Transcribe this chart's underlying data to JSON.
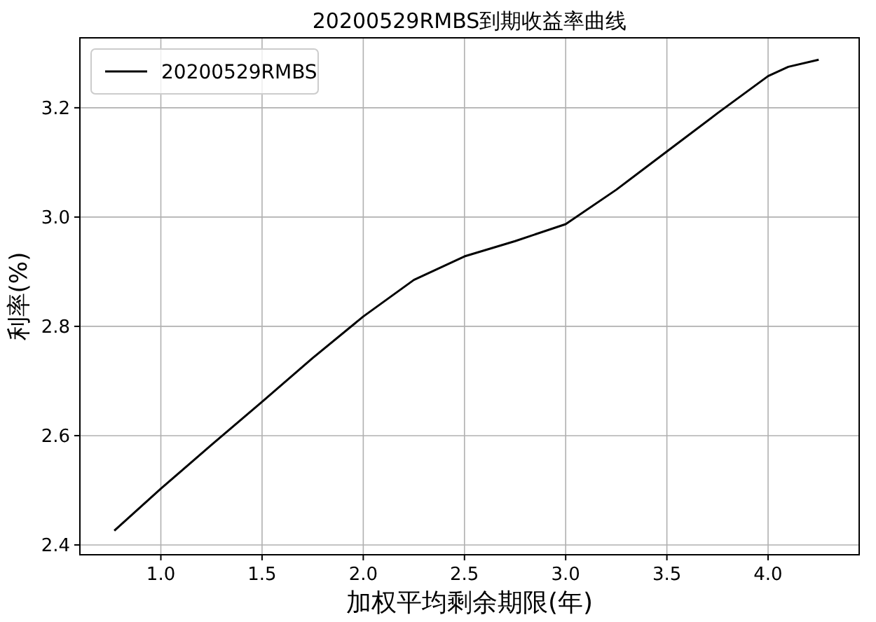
{
  "chart_data": {
    "type": "line",
    "title": "20200529RMBS到期收益率曲线",
    "xlabel": "加权平均剩余期限(年)",
    "ylabel": "利率(%)",
    "x": [
      0.77,
      1.0,
      1.25,
      1.5,
      1.75,
      2.0,
      2.25,
      2.5,
      2.75,
      3.0,
      3.25,
      3.5,
      3.75,
      4.0,
      4.1,
      4.25
    ],
    "series": [
      {
        "name": "20200529RMBS",
        "color": "#000000",
        "values": [
          2.426,
          2.503,
          2.583,
          2.662,
          2.742,
          2.818,
          2.885,
          2.928,
          2.956,
          2.987,
          3.05,
          3.12,
          3.19,
          3.258,
          3.275,
          3.288
        ]
      }
    ],
    "xlim": [
      0.6,
      4.45
    ],
    "ylim": [
      2.382,
      3.328
    ],
    "xticks": [
      {
        "value": 1.0,
        "label": "1.0"
      },
      {
        "value": 1.5,
        "label": "1.5"
      },
      {
        "value": 2.0,
        "label": "2.0"
      },
      {
        "value": 2.5,
        "label": "2.5"
      },
      {
        "value": 3.0,
        "label": "3.0"
      },
      {
        "value": 3.5,
        "label": "3.5"
      },
      {
        "value": 4.0,
        "label": "4.0"
      }
    ],
    "yticks": [
      {
        "value": 2.4,
        "label": "2.4"
      },
      {
        "value": 2.6,
        "label": "2.6"
      },
      {
        "value": 2.8,
        "label": "2.8"
      },
      {
        "value": 3.0,
        "label": "3.0"
      },
      {
        "value": 3.2,
        "label": "3.2"
      }
    ],
    "grid": true,
    "legend": "top left",
    "marker": "none",
    "line_style": "solid"
  }
}
